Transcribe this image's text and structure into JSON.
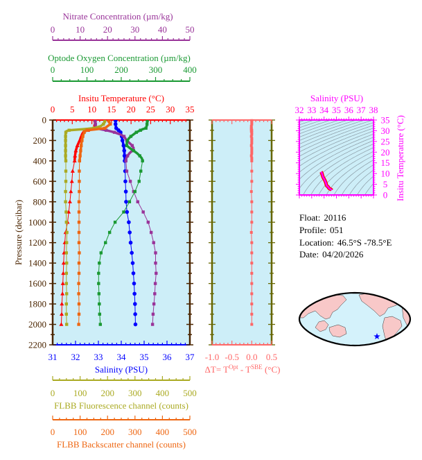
{
  "colors": {
    "temperature": "#ff0000",
    "salinity": "#0000ff",
    "nitrate": "#993399",
    "oxygen": "#1a9933",
    "fluorescence": "#aaaa22",
    "backscatter": "#ee6611",
    "pressure_axis": "#4b2500",
    "plot_background": "#cdeef8",
    "delta_t": "#ff6666",
    "delta_panel_sides": "#666600",
    "ts": "#ff00ff",
    "map_land": "#f8c8c8",
    "map_star": "#0000ff"
  },
  "chart_data": [
    {
      "type": "line",
      "ylabel": "Pressure (decibar)",
      "ylim": [
        0,
        2200
      ],
      "y_ticks": [
        "0",
        "200",
        "400",
        "600",
        "800",
        "1000",
        "1200",
        "1400",
        "1600",
        "1800",
        "2000",
        "2200"
      ],
      "y_reversed": true,
      "pressure": [
        5,
        20,
        40,
        60,
        80,
        90,
        100,
        110,
        120,
        140,
        160,
        180,
        200,
        225,
        250,
        275,
        300,
        325,
        350,
        375,
        400,
        500,
        600,
        700,
        800,
        900,
        1000,
        1100,
        1200,
        1300,
        1400,
        1500,
        1600,
        1700,
        1800,
        1900,
        2000
      ],
      "axes": {
        "nitrate": {
          "title": "Nitrate Concentration (µm/kg)",
          "range": [
            0,
            50
          ],
          "ticks": [
            "0",
            "10",
            "20",
            "30",
            "40",
            "50"
          ],
          "minor_step": 2
        },
        "oxygen": {
          "title": "Optode Oxygen Concentration (µm/kg)",
          "range": [
            0,
            400
          ],
          "ticks": [
            "0",
            "100",
            "200",
            "300",
            "400"
          ],
          "minor_step": 25
        },
        "temperature": {
          "title": "Insitu Temperature (°C)",
          "range": [
            0,
            35
          ],
          "ticks": [
            "0",
            "5",
            "10",
            "15",
            "20",
            "25",
            "30",
            "35"
          ],
          "minor_step": 1
        },
        "salinity": {
          "title": "Salinity (PSU)",
          "range": [
            31,
            37
          ],
          "ticks": [
            "31",
            "32",
            "33",
            "34",
            "35",
            "36",
            "37"
          ],
          "minor_step": 0.2
        },
        "fluorescence": {
          "title": "FLBB Fluorescence channel (counts)",
          "range": [
            0,
            500
          ],
          "ticks": [
            "0",
            "100",
            "200",
            "300",
            "400",
            "500"
          ],
          "minor_step": 25
        },
        "backscatter": {
          "title": "FLBB Backscatter channel (counts)",
          "range": [
            0,
            500
          ],
          "ticks": [
            "0",
            "100",
            "200",
            "300",
            "400",
            "500"
          ],
          "minor_step": 25
        }
      },
      "series": [
        {
          "key": "temperature",
          "axis": "temperature",
          "marker": "triangle",
          "values": [
            10.8,
            10.8,
            10.8,
            10.7,
            10.6,
            10.2,
            9.0,
            8.2,
            7.8,
            7.5,
            7.3,
            7.1,
            6.9,
            6.6,
            6.3,
            6.1,
            5.9,
            5.8,
            5.7,
            5.65,
            5.6,
            5.1,
            4.9,
            4.65,
            4.4,
            4.1,
            3.8,
            3.3,
            3.1,
            2.9,
            2.8,
            2.7,
            2.6,
            2.5,
            2.35,
            2.3,
            2.2
          ]
        },
        {
          "key": "salinity",
          "axis": "salinity",
          "marker": "circle",
          "values": [
            33.75,
            33.75,
            33.75,
            33.76,
            33.78,
            33.82,
            33.88,
            33.93,
            33.97,
            34.0,
            34.02,
            34.04,
            34.05,
            34.08,
            34.1,
            34.12,
            34.13,
            34.14,
            34.14,
            34.15,
            34.15,
            34.17,
            34.18,
            34.2,
            34.21,
            34.25,
            34.33,
            34.37,
            34.41,
            34.46,
            34.5,
            34.53,
            34.56,
            34.58,
            34.6,
            34.61,
            34.62
          ]
        },
        {
          "key": "nitrate",
          "axis": "nitrate",
          "marker": "square",
          "values": [
            15.5,
            15.5,
            15.6,
            15.6,
            15.8,
            17.5,
            19.5,
            21,
            22.5,
            24.5,
            26,
            26.5,
            27,
            28,
            29,
            29.5,
            29,
            28,
            27.3,
            26.8,
            26.7,
            27.0,
            28.3,
            29.5,
            31.0,
            33.0,
            34.8,
            35.9,
            36.8,
            37.5,
            37.5,
            37.7,
            37.4,
            37.2,
            36.9,
            36.6,
            36.4
          ]
        },
        {
          "key": "oxygen",
          "axis": "oxygen",
          "marker": "square",
          "values": [
            276,
            276,
            275,
            274,
            272,
            262,
            256,
            250,
            244,
            236,
            228,
            222,
            218,
            216,
            216,
            225,
            236,
            246,
            254,
            260,
            262,
            257,
            252,
            240,
            224,
            207,
            182,
            166,
            154,
            141,
            136,
            134,
            134,
            135,
            136,
            137,
            139
          ]
        },
        {
          "key": "fluorescence",
          "axis": "fluorescence",
          "marker": "square",
          "values": [
            190,
            190,
            185,
            175,
            150,
            110,
            60,
            50,
            48,
            47,
            47,
            47,
            47,
            47,
            47,
            47,
            47,
            47,
            47,
            47,
            48,
            48,
            48,
            47,
            47,
            49,
            50,
            52,
            51,
            50,
            51,
            50,
            50,
            51,
            50,
            50,
            51
          ]
        },
        {
          "key": "backscatter",
          "axis": "backscatter",
          "marker": "square",
          "values": [
            205,
            205,
            210,
            200,
            190,
            160,
            125,
            118,
            115,
            112,
            110,
            108,
            107,
            105,
            104,
            103,
            102,
            101,
            100,
            99,
            98,
            97,
            97,
            97,
            96,
            96,
            96,
            96,
            96,
            97,
            96,
            96,
            95,
            95,
            96,
            96,
            95
          ]
        }
      ]
    },
    {
      "type": "line",
      "title_parts": [
        "ΔT= T",
        "Opt",
        " - T",
        "SBE",
        " (°C)"
      ],
      "xlim": [
        -1.0,
        0.5
      ],
      "x_ticks": [
        "-1.0",
        "-0.5",
        "0.0",
        "0.5"
      ],
      "ylim": [
        0,
        2200
      ],
      "values": [
        0,
        0,
        0,
        -0.01,
        -0.01,
        -0.01,
        0,
        -0.01,
        0,
        0,
        -0.01,
        0,
        0,
        0,
        -0.01,
        0,
        0,
        0,
        -0.01,
        0,
        0,
        0,
        0,
        -0.01,
        0,
        0,
        0,
        -0.01,
        0,
        0,
        0,
        0,
        0,
        0,
        0,
        0,
        0
      ]
    },
    {
      "type": "scatter",
      "xlabel": "Salinity (PSU)",
      "ylabel": "Insitu Temperature (°C)",
      "xlim": [
        32,
        38
      ],
      "ylim": [
        0,
        35
      ],
      "x_ticks": [
        "32",
        "33",
        "34",
        "35",
        "36",
        "37",
        "38"
      ],
      "y_ticks": [
        "0",
        "5",
        "10",
        "15",
        "20",
        "25",
        "30",
        "35"
      ],
      "density_contours": true
    }
  ],
  "info": {
    "float_label": "Float:",
    "float_value": "20116",
    "profile_label": "Profile:",
    "profile_value": "051",
    "location_label": "Location:",
    "location_value": "46.5°S  -78.5°E",
    "date_label": "Date:",
    "date_value": "04/20/2026"
  },
  "map": {
    "marker": "star-icon",
    "projection": "pacific-centered world map"
  }
}
